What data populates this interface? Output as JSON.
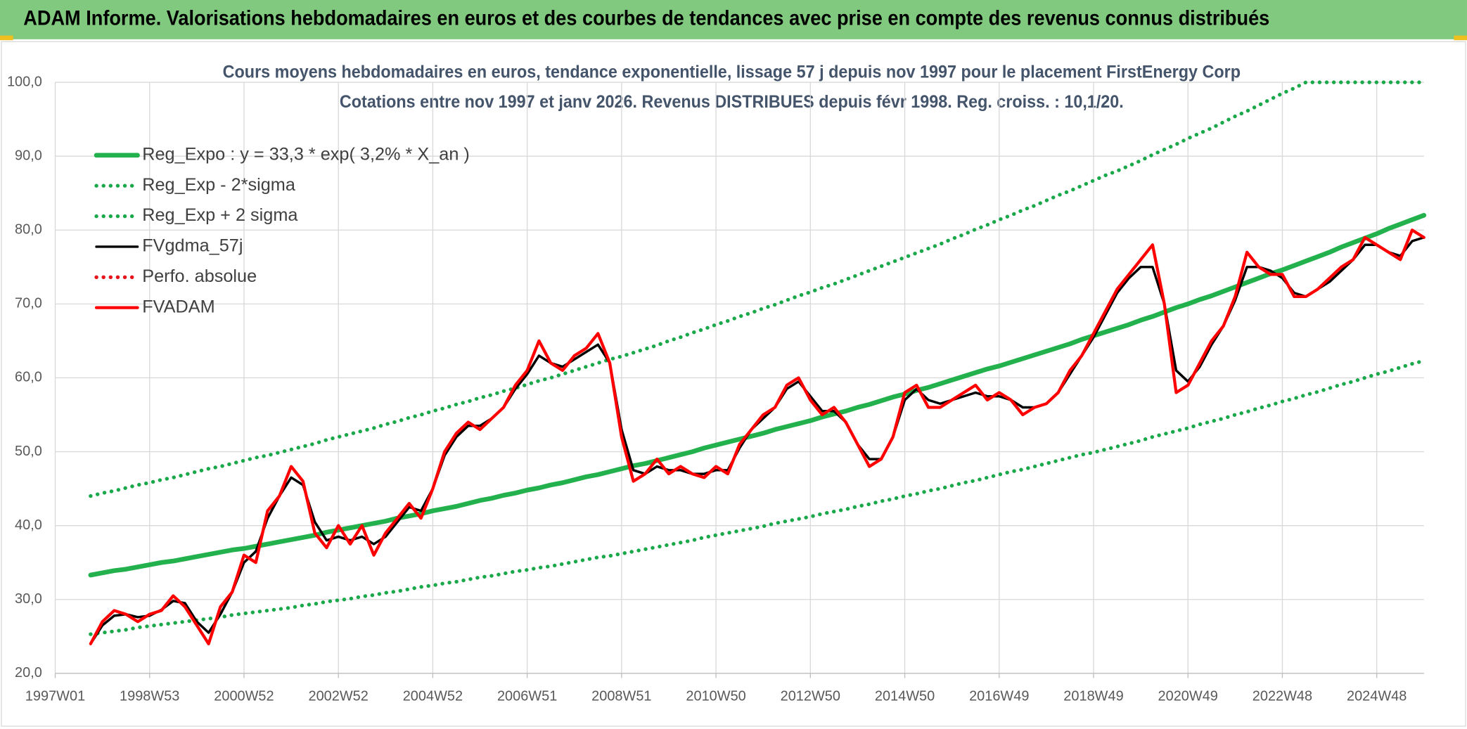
{
  "chart_data": {
    "type": "line",
    "header": "ADAM Informe. Valorisations hebdomadaires en euros et des courbes de tendances avec prise en compte des revenus connus distribués",
    "title": "Cours moyens hebdomadaires en euros, tendance exponentielle, lissage 57 j depuis nov 1997 pour le placement FirstEnergy Corp",
    "subtitle": "Cotations entre nov 1997 et janv 2026. Revenus DISTRIBUES depuis févr 1998. Reg. croiss. : 10,1/20.",
    "categories": [
      "1997W01",
      null,
      null,
      null,
      null,
      null,
      null,
      null,
      "1998W53",
      null,
      null,
      null,
      null,
      null,
      null,
      null,
      "2000W52",
      null,
      null,
      null,
      null,
      null,
      null,
      null,
      "2002W52",
      null,
      null,
      null,
      null,
      null,
      null,
      null,
      "2004W52",
      null,
      null,
      null,
      null,
      null,
      null,
      null,
      "2006W51",
      null,
      null,
      null,
      null,
      null,
      null,
      null,
      "2008W51",
      null,
      null,
      null,
      null,
      null,
      null,
      null,
      "2010W50",
      null,
      null,
      null,
      null,
      null,
      null,
      null,
      "2012W50",
      null,
      null,
      null,
      null,
      null,
      null,
      null,
      "2014W50",
      null,
      null,
      null,
      null,
      null,
      null,
      null,
      "2016W49",
      null,
      null,
      null,
      null,
      null,
      null,
      null,
      "2018W49",
      null,
      null,
      null,
      null,
      null,
      null,
      null,
      "2020W49",
      null,
      null,
      null,
      null,
      null,
      null,
      null,
      "2022W48",
      null,
      null,
      null,
      null,
      null,
      null,
      null,
      "2024W48",
      null,
      null,
      null,
      null
    ],
    "ylim": [
      20,
      100
    ],
    "yticks": [
      {
        "value": 20,
        "label": "20,0"
      },
      {
        "value": 30,
        "label": "30,0"
      },
      {
        "value": 40,
        "label": "40,0"
      },
      {
        "value": 50,
        "label": "50,0"
      },
      {
        "value": 60,
        "label": "60,0"
      },
      {
        "value": 70,
        "label": "70,0"
      },
      {
        "value": 80,
        "label": "80,0"
      },
      {
        "value": 90,
        "label": "90,0"
      },
      {
        "value": 100,
        "label": "100,0"
      }
    ],
    "grid": true,
    "legend": "upper left",
    "series": [
      {
        "name": "Reg_Expo : y = 33,3 * exp( 3,2% *  X_an )",
        "color": "#22b14c",
        "style": "solid",
        "values": [
          null,
          null,
          null,
          33.3,
          33.6,
          33.9,
          34.1,
          34.4,
          34.7,
          35.0,
          35.2,
          35.5,
          35.8,
          36.1,
          36.4,
          36.7,
          36.9,
          37.2,
          37.5,
          37.8,
          38.1,
          38.4,
          38.7,
          39.1,
          39.4,
          39.7,
          40.0,
          40.3,
          40.6,
          41.0,
          41.3,
          41.6,
          42.0,
          42.3,
          42.6,
          43.0,
          43.4,
          43.7,
          44.1,
          44.4,
          44.8,
          45.1,
          45.5,
          45.8,
          46.2,
          46.6,
          46.9,
          47.3,
          47.7,
          48.1,
          48.4,
          48.8,
          49.2,
          49.6,
          50.0,
          50.5,
          50.9,
          51.3,
          51.7,
          52.1,
          52.5,
          53.0,
          53.4,
          53.8,
          54.2,
          54.7,
          55.1,
          55.5,
          56.0,
          56.4,
          56.9,
          57.4,
          57.8,
          58.3,
          58.7,
          59.2,
          59.7,
          60.2,
          60.7,
          61.2,
          61.6,
          62.1,
          62.6,
          63.1,
          63.6,
          64.1,
          64.6,
          65.2,
          65.7,
          66.2,
          66.7,
          67.2,
          67.8,
          68.3,
          68.9,
          69.5,
          70.0,
          70.6,
          71.1,
          71.7,
          72.3,
          72.9,
          73.5,
          74.1,
          74.6,
          75.2,
          75.8,
          76.4,
          77.0,
          77.7,
          78.3,
          78.9,
          79.5,
          80.2,
          80.8,
          81.4,
          82.0
        ]
      },
      {
        "name": "Reg_Exp - 2*sigma",
        "color": "#1aa84a",
        "style": "dotted",
        "values": [
          null,
          null,
          null,
          25.3,
          25.5,
          25.7,
          25.9,
          26.2,
          26.4,
          26.6,
          26.8,
          27.0,
          27.2,
          27.4,
          27.6,
          27.9,
          28.1,
          28.3,
          28.5,
          28.7,
          28.9,
          29.2,
          29.4,
          29.7,
          29.9,
          30.1,
          30.4,
          30.6,
          30.9,
          31.1,
          31.4,
          31.7,
          31.9,
          32.2,
          32.4,
          32.7,
          33.0,
          33.2,
          33.5,
          33.8,
          34.0,
          34.3,
          34.5,
          34.8,
          35.1,
          35.4,
          35.7,
          35.9,
          36.2,
          36.5,
          36.8,
          37.1,
          37.4,
          37.7,
          38.0,
          38.4,
          38.7,
          39.0,
          39.3,
          39.6,
          39.9,
          40.3,
          40.6,
          40.9,
          41.2,
          41.6,
          41.9,
          42.2,
          42.6,
          42.9,
          43.3,
          43.6,
          44.0,
          44.3,
          44.7,
          45.0,
          45.4,
          45.8,
          46.1,
          46.5,
          46.9,
          47.3,
          47.6,
          48.0,
          48.4,
          48.8,
          49.2,
          49.6,
          49.9,
          50.3,
          50.7,
          51.1,
          51.5,
          52.0,
          52.4,
          52.8,
          53.2,
          53.7,
          54.1,
          54.5,
          55.0,
          55.4,
          55.9,
          56.3,
          56.8,
          57.2,
          57.7,
          58.1,
          58.6,
          59.1,
          59.5,
          60.0,
          60.5,
          60.9,
          61.4,
          61.9,
          62.3
        ]
      },
      {
        "name": "Reg_Exp + 2 sigma",
        "color": "#1aa84a",
        "style": "dotted",
        "values": [
          null,
          null,
          null,
          44.0,
          44.4,
          44.7,
          45.1,
          45.5,
          45.8,
          46.2,
          46.5,
          46.9,
          47.3,
          47.7,
          48.0,
          48.4,
          48.8,
          49.2,
          49.5,
          49.9,
          50.3,
          50.7,
          51.1,
          51.6,
          52.0,
          52.4,
          52.8,
          53.2,
          53.7,
          54.1,
          54.6,
          55.0,
          55.5,
          55.9,
          56.4,
          56.8,
          57.3,
          57.7,
          58.2,
          58.6,
          59.1,
          59.6,
          60.0,
          60.5,
          61.0,
          61.5,
          62.0,
          62.5,
          62.9,
          63.4,
          63.9,
          64.4,
          65.0,
          65.5,
          66.1,
          66.6,
          67.2,
          67.7,
          68.3,
          68.8,
          69.4,
          69.9,
          70.5,
          71.1,
          71.6,
          72.2,
          72.7,
          73.3,
          73.9,
          74.5,
          75.1,
          75.7,
          76.3,
          76.9,
          77.5,
          78.1,
          78.8,
          79.4,
          80.1,
          80.7,
          81.4,
          82.0,
          82.7,
          83.3,
          84.0,
          84.7,
          85.3,
          86.0,
          86.7,
          87.4,
          88.0,
          88.7,
          89.4,
          90.2,
          90.9,
          91.6,
          92.4,
          93.1,
          93.8,
          94.6,
          95.4,
          96.1,
          96.9,
          97.7,
          98.5,
          99.2,
          100.0,
          100,
          100,
          100,
          100,
          100,
          100,
          100,
          100,
          100,
          100
        ]
      },
      {
        "name": "FVgdma_57j",
        "color": "#000000",
        "style": "solid",
        "values": [
          null,
          null,
          null,
          24,
          26.5,
          27.8,
          28,
          27.6,
          27.8,
          28.6,
          29.8,
          29.5,
          27,
          25.5,
          28,
          31,
          35,
          36.5,
          41,
          44,
          46.5,
          45.5,
          40.5,
          38,
          38.5,
          38,
          38.5,
          37.5,
          38.5,
          40.5,
          42.5,
          42,
          45,
          49.5,
          52,
          53.5,
          53.5,
          54.5,
          56,
          58.5,
          60.5,
          63,
          62,
          61.5,
          62.5,
          63.5,
          64.5,
          62,
          53,
          47.5,
          47,
          48,
          47.5,
          47.5,
          47,
          47,
          47.5,
          47.5,
          50.5,
          53,
          54.5,
          56,
          58.5,
          59.5,
          57.5,
          55.5,
          55.5,
          54,
          51,
          49,
          49,
          52,
          57,
          58.5,
          57,
          56.5,
          57,
          57.5,
          58,
          57.5,
          57.5,
          57,
          56,
          56,
          56.5,
          58,
          60.5,
          63,
          65.5,
          68.5,
          71.5,
          73.5,
          75,
          75,
          70,
          61,
          59.5,
          61.5,
          64.5,
          67,
          70.5,
          75,
          75,
          74.5,
          73.5,
          71.5,
          71,
          72,
          73,
          74.5,
          76,
          78,
          78,
          77,
          76.5,
          78.5,
          79
        ]
      },
      {
        "name": "Perfo. absolue",
        "color": "#e8141b",
        "style": "dotted",
        "values": [
          null,
          null,
          null,
          null,
          null,
          null,
          null,
          null,
          null,
          null,
          null,
          null,
          null,
          null,
          null,
          null,
          null,
          null,
          null,
          null,
          null,
          null,
          null,
          null,
          null,
          null,
          null,
          null,
          null,
          null,
          null,
          null,
          null,
          null,
          null,
          null,
          null,
          null,
          null,
          null,
          null,
          null,
          null,
          null,
          null,
          null,
          null,
          null,
          null,
          null,
          null,
          null,
          null,
          null,
          null,
          null,
          null,
          null,
          null,
          null,
          null,
          null,
          null,
          null,
          null,
          null,
          null,
          null,
          null,
          null,
          null,
          null,
          null,
          null,
          null,
          null,
          null,
          null,
          null,
          null,
          null,
          null,
          null,
          null,
          null,
          null,
          null,
          null,
          null,
          null,
          null,
          null,
          null,
          null,
          null,
          null,
          null,
          null,
          null,
          null,
          null,
          null,
          null,
          null,
          null,
          null,
          null,
          null,
          null,
          null,
          null,
          null,
          null,
          null,
          null,
          null,
          null
        ]
      },
      {
        "name": "FVADAM",
        "color": "#ff0000",
        "style": "solid",
        "values": [
          null,
          null,
          null,
          24,
          27,
          28.5,
          28,
          27,
          28,
          28.5,
          30.5,
          29,
          26.5,
          24,
          29,
          31,
          36,
          35,
          42,
          44,
          48,
          46,
          39,
          37,
          40,
          37.5,
          40,
          36,
          39,
          41,
          43,
          41,
          45,
          50,
          52.5,
          54,
          53,
          54.5,
          56,
          59,
          61,
          65,
          62,
          61,
          63,
          64,
          66,
          62,
          52,
          46,
          47,
          49,
          47,
          48,
          47,
          46.5,
          48,
          47,
          51,
          53,
          55,
          56,
          59,
          60,
          57,
          55,
          56,
          54,
          51,
          48,
          49,
          52,
          58,
          59,
          56,
          56,
          57,
          58,
          59,
          57,
          58,
          57,
          55,
          56,
          56.5,
          58,
          61,
          63,
          66,
          69,
          72,
          74,
          76,
          78,
          70,
          58,
          59,
          62,
          65,
          67,
          71,
          77,
          75,
          74,
          74,
          71,
          71,
          72,
          73.5,
          75,
          76,
          79,
          78,
          77,
          76,
          80,
          79
        ]
      }
    ]
  }
}
